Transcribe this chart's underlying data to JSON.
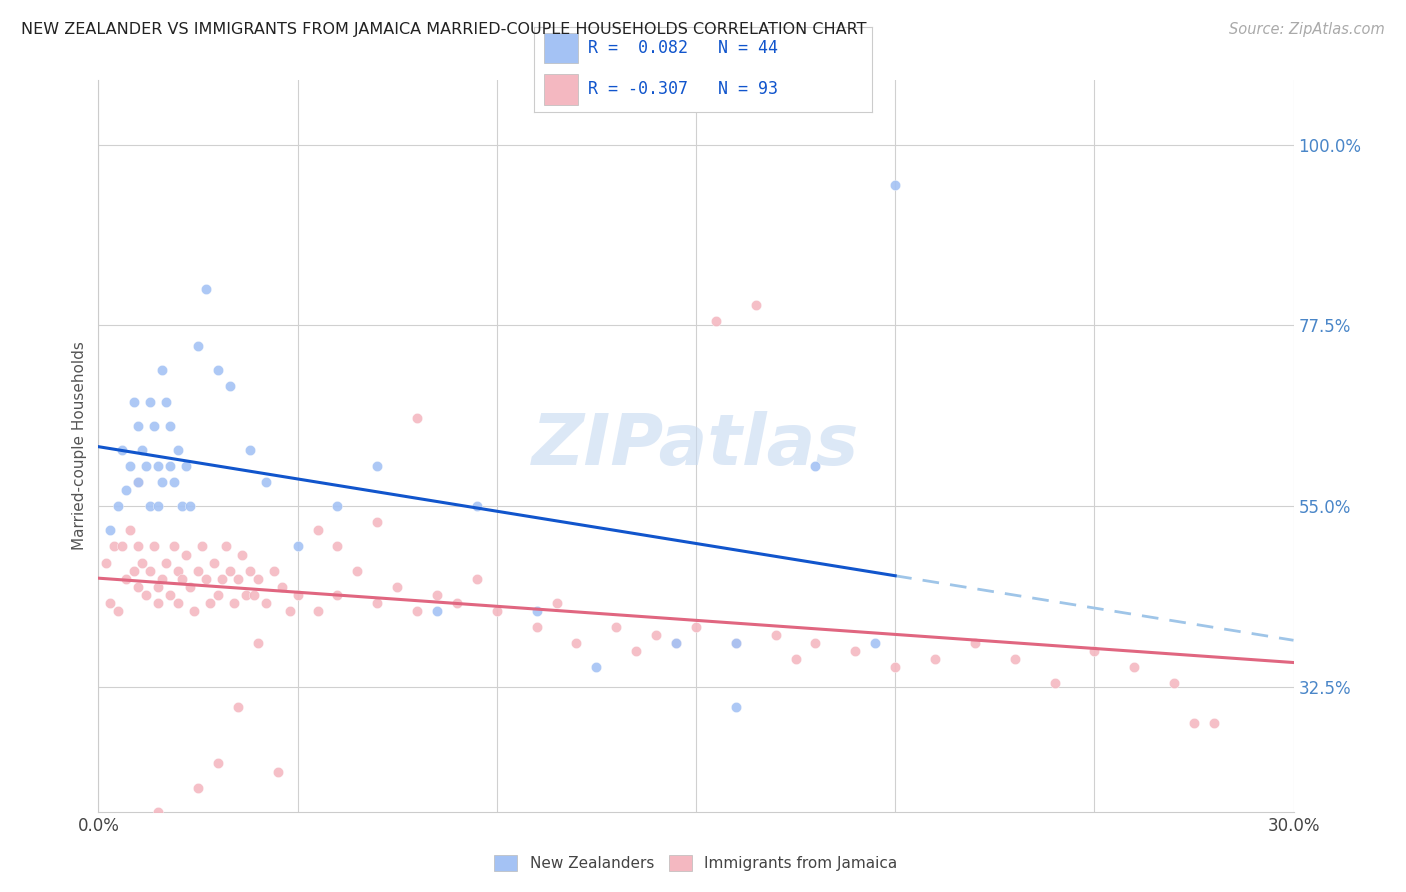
{
  "title": "NEW ZEALANDER VS IMMIGRANTS FROM JAMAICA MARRIED-COUPLE HOUSEHOLDS CORRELATION CHART",
  "source": "Source: ZipAtlas.com",
  "ylabel": "Married-couple Households",
  "yticks": [
    "32.5%",
    "55.0%",
    "77.5%",
    "100.0%"
  ],
  "ytick_vals": [
    0.325,
    0.55,
    0.775,
    1.0
  ],
  "xlim": [
    0.0,
    0.3
  ],
  "ylim": [
    0.17,
    1.08
  ],
  "color_blue": "#a4c2f4",
  "color_pink": "#f4b8c1",
  "color_blue_line": "#1155cc",
  "color_pink_line": "#e06680",
  "color_dashed": "#9fc5e8",
  "color_ytick": "#4a86c8",
  "blue_x": [
    0.003,
    0.005,
    0.006,
    0.007,
    0.008,
    0.009,
    0.01,
    0.01,
    0.011,
    0.012,
    0.013,
    0.013,
    0.014,
    0.015,
    0.015,
    0.016,
    0.016,
    0.017,
    0.018,
    0.018,
    0.019,
    0.02,
    0.021,
    0.022,
    0.023,
    0.025,
    0.027,
    0.03,
    0.033,
    0.038,
    0.042,
    0.05,
    0.06,
    0.07,
    0.085,
    0.095,
    0.11,
    0.125,
    0.145,
    0.16,
    0.16,
    0.18,
    0.195,
    0.2
  ],
  "blue_y": [
    0.52,
    0.55,
    0.62,
    0.57,
    0.6,
    0.68,
    0.58,
    0.65,
    0.62,
    0.6,
    0.55,
    0.68,
    0.65,
    0.6,
    0.55,
    0.72,
    0.58,
    0.68,
    0.65,
    0.6,
    0.58,
    0.62,
    0.55,
    0.6,
    0.55,
    0.75,
    0.82,
    0.72,
    0.7,
    0.62,
    0.58,
    0.5,
    0.55,
    0.6,
    0.42,
    0.55,
    0.42,
    0.35,
    0.38,
    0.3,
    0.38,
    0.6,
    0.38,
    0.95
  ],
  "pink_x": [
    0.002,
    0.003,
    0.004,
    0.005,
    0.006,
    0.007,
    0.008,
    0.009,
    0.01,
    0.01,
    0.011,
    0.012,
    0.013,
    0.014,
    0.015,
    0.015,
    0.016,
    0.017,
    0.018,
    0.019,
    0.02,
    0.02,
    0.021,
    0.022,
    0.023,
    0.024,
    0.025,
    0.026,
    0.027,
    0.028,
    0.029,
    0.03,
    0.031,
    0.032,
    0.033,
    0.034,
    0.035,
    0.036,
    0.037,
    0.038,
    0.039,
    0.04,
    0.042,
    0.044,
    0.046,
    0.048,
    0.05,
    0.055,
    0.06,
    0.065,
    0.07,
    0.075,
    0.08,
    0.085,
    0.09,
    0.095,
    0.1,
    0.11,
    0.115,
    0.12,
    0.13,
    0.135,
    0.14,
    0.145,
    0.15,
    0.16,
    0.17,
    0.175,
    0.18,
    0.19,
    0.2,
    0.21,
    0.22,
    0.23,
    0.24,
    0.25,
    0.26,
    0.27,
    0.275,
    0.28,
    0.165,
    0.155,
    0.08,
    0.07,
    0.06,
    0.055,
    0.045,
    0.04,
    0.035,
    0.03,
    0.025,
    0.015,
    0.01
  ],
  "pink_y": [
    0.48,
    0.43,
    0.5,
    0.42,
    0.5,
    0.46,
    0.52,
    0.47,
    0.5,
    0.45,
    0.48,
    0.44,
    0.47,
    0.5,
    0.45,
    0.43,
    0.46,
    0.48,
    0.44,
    0.5,
    0.47,
    0.43,
    0.46,
    0.49,
    0.45,
    0.42,
    0.47,
    0.5,
    0.46,
    0.43,
    0.48,
    0.44,
    0.46,
    0.5,
    0.47,
    0.43,
    0.46,
    0.49,
    0.44,
    0.47,
    0.44,
    0.46,
    0.43,
    0.47,
    0.45,
    0.42,
    0.44,
    0.42,
    0.44,
    0.47,
    0.43,
    0.45,
    0.42,
    0.44,
    0.43,
    0.46,
    0.42,
    0.4,
    0.43,
    0.38,
    0.4,
    0.37,
    0.39,
    0.38,
    0.4,
    0.38,
    0.39,
    0.36,
    0.38,
    0.37,
    0.35,
    0.36,
    0.38,
    0.36,
    0.33,
    0.37,
    0.35,
    0.33,
    0.28,
    0.28,
    0.8,
    0.78,
    0.66,
    0.53,
    0.5,
    0.52,
    0.22,
    0.38,
    0.3,
    0.23,
    0.2,
    0.17,
    0.58
  ]
}
